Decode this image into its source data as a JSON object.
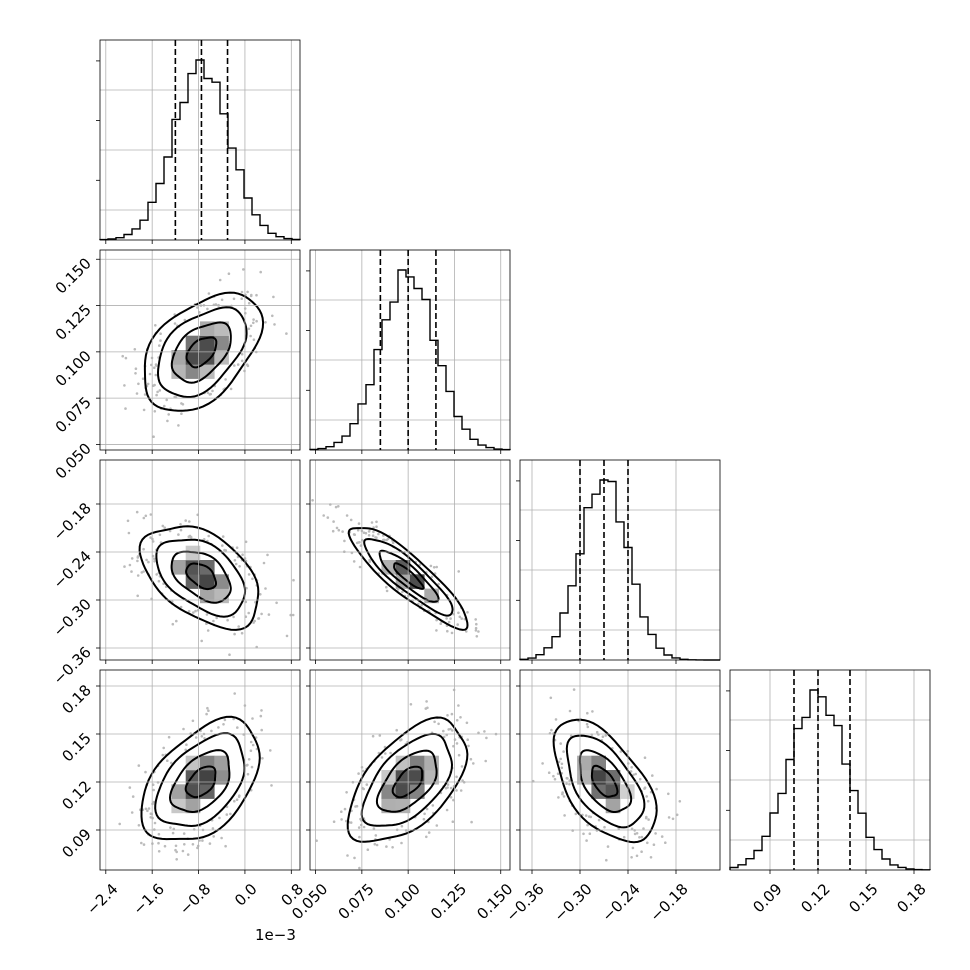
{
  "chart_data": {
    "type": "corner",
    "title": "",
    "parameters": [
      {
        "range": [
          -2.5,
          0.95
        ],
        "ticks": [
          -2.4,
          -1.6,
          -0.8,
          0.0,
          0.8
        ],
        "tick_labels": [
          "−2.4",
          "−1.6",
          "−0.8",
          "0.0",
          "0.8"
        ],
        "offset_label": "1e−3",
        "mean": -0.75,
        "sd": 0.48,
        "quantiles": [
          -1.2,
          -0.75,
          -0.3
        ]
      },
      {
        "range": [
          0.047,
          0.155
        ],
        "ticks": [
          0.05,
          0.075,
          0.1,
          0.125,
          0.15
        ],
        "tick_labels": [
          "0.050",
          "0.075",
          "0.100",
          "0.125",
          "0.150"
        ],
        "offset_label": "",
        "mean": 0.1,
        "sd": 0.015,
        "quantiles": [
          0.085,
          0.1,
          0.115
        ]
      },
      {
        "range": [
          -0.375,
          -0.125
        ],
        "ticks": [
          -0.36,
          -0.3,
          -0.24,
          -0.18
        ],
        "tick_labels": [
          "−0.36",
          "−0.30",
          "−0.24",
          "−0.18"
        ],
        "offset_label": "",
        "mean": -0.27,
        "sd": 0.03,
        "quantiles": [
          -0.3,
          -0.27,
          -0.24
        ]
      },
      {
        "range": [
          0.065,
          0.19
        ],
        "ticks": [
          0.09,
          0.12,
          0.15,
          0.18
        ],
        "tick_labels": [
          "0.09",
          "0.12",
          "0.15",
          "0.18"
        ],
        "offset_label": "",
        "mean": 0.12,
        "sd": 0.018,
        "quantiles": [
          0.105,
          0.12,
          0.14
        ]
      }
    ],
    "correlations": [
      [
        1.0,
        0.45,
        -0.45,
        0.45
      ],
      [
        0.45,
        1.0,
        -0.88,
        0.55
      ],
      [
        -0.45,
        -0.88,
        1.0,
        -0.55
      ],
      [
        0.45,
        0.55,
        -0.55,
        1.0
      ]
    ],
    "contour_levels_sigma": [
      0.5,
      1.0,
      1.5,
      2.0
    ],
    "grid": true,
    "hist_bins": 25
  }
}
